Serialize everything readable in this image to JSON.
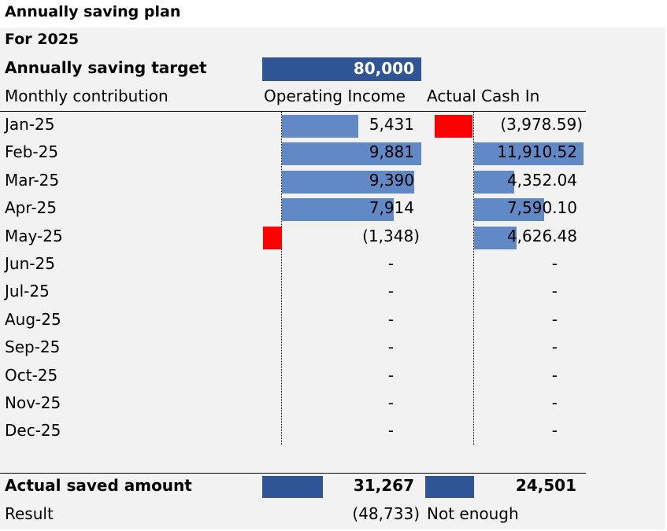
{
  "title": "Annually saving plan",
  "year_label": "For 2025",
  "target_label": "Annually saving target",
  "target_value": "80,000",
  "monthly_label": "Monthly contribution",
  "col_operating": "Operating Income",
  "col_actual": "Actual Cash In",
  "rows": [
    {
      "month": "Jan-25",
      "op": "5,431",
      "op_value": 5431,
      "cash": "(3,978.59)",
      "cash_value": -3978.59
    },
    {
      "month": "Feb-25",
      "op": "9,881",
      "op_value": 9881,
      "cash": "11,910.52",
      "cash_value": 11910.52
    },
    {
      "month": "Mar-25",
      "op": "9,390",
      "op_value": 9390,
      "cash": "4,352.04",
      "cash_value": 4352.04
    },
    {
      "month": "Apr-25",
      "op": "7,914",
      "op_value": 7914,
      "cash": "7,590.10",
      "cash_value": 7590.1
    },
    {
      "month": "May-25",
      "op": "(1,348)",
      "op_value": -1348,
      "cash": "4,626.48",
      "cash_value": 4626.48
    },
    {
      "month": "Jun-25",
      "op": "-",
      "op_value": 0,
      "cash": "-",
      "cash_value": 0
    },
    {
      "month": "Jul-25",
      "op": "-",
      "op_value": 0,
      "cash": "-",
      "cash_value": 0
    },
    {
      "month": "Aug-25",
      "op": "-",
      "op_value": 0,
      "cash": "-",
      "cash_value": 0
    },
    {
      "month": "Sep-25",
      "op": "-",
      "op_value": 0,
      "cash": "-",
      "cash_value": 0
    },
    {
      "month": "Oct-25",
      "op": "-",
      "op_value": 0,
      "cash": "-",
      "cash_value": 0
    },
    {
      "month": "Nov-25",
      "op": "-",
      "op_value": 0,
      "cash": "-",
      "cash_value": 0
    },
    {
      "month": "Dec-25",
      "op": "-",
      "op_value": 0,
      "cash": "-",
      "cash_value": 0
    }
  ],
  "actual_saved_label": "Actual saved amount",
  "actual_saved_op": "31,267",
  "actual_saved_cash": "24,501",
  "result_label": "Result",
  "result_value": "(48,733)",
  "result_status": "Not enough",
  "colors": {
    "bar_blue": "#6189c6",
    "bar_dark": "#2f5597",
    "bar_negative": "#ff0000",
    "sheet_bg": "#f2f2f2"
  }
}
